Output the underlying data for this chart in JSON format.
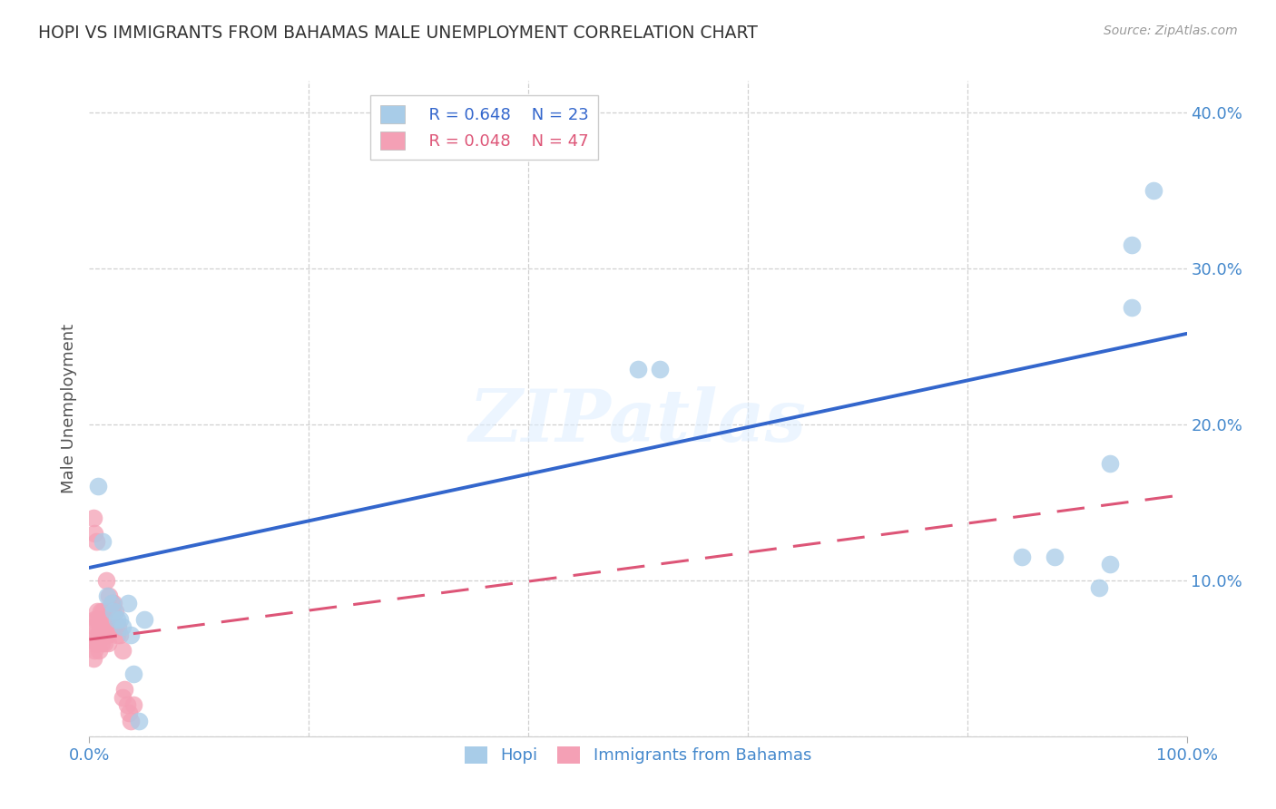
{
  "title": "HOPI VS IMMIGRANTS FROM BAHAMAS MALE UNEMPLOYMENT CORRELATION CHART",
  "source": "Source: ZipAtlas.com",
  "ylabel": "Male Unemployment",
  "xlim": [
    0,
    1.0
  ],
  "ylim": [
    0,
    0.42
  ],
  "xticks": [
    0.0,
    1.0
  ],
  "xtick_labels": [
    "0.0%",
    "100.0%"
  ],
  "yticks": [
    0.0,
    0.1,
    0.2,
    0.3,
    0.4
  ],
  "ytick_labels": [
    "",
    "10.0%",
    "20.0%",
    "30.0%",
    "40.0%"
  ],
  "legend_r_hopi": "R = 0.648",
  "legend_n_hopi": "N = 23",
  "legend_r_bahamas": "R = 0.048",
  "legend_n_bahamas": "N = 47",
  "hopi_color": "#a8cce8",
  "bahamas_color": "#f4a0b5",
  "hopi_line_color": "#3366cc",
  "bahamas_line_color": "#dd5577",
  "background_color": "#ffffff",
  "grid_color": "#d0d0d0",
  "hopi_scatter_x": [
    0.008,
    0.012,
    0.016,
    0.02,
    0.022,
    0.025,
    0.028,
    0.03,
    0.035,
    0.038,
    0.04,
    0.045,
    0.05,
    0.5,
    0.52,
    0.85,
    0.88,
    0.92,
    0.93,
    0.95,
    0.97,
    0.93,
    0.95
  ],
  "hopi_scatter_y": [
    0.16,
    0.125,
    0.09,
    0.085,
    0.08,
    0.075,
    0.075,
    0.07,
    0.085,
    0.065,
    0.04,
    0.01,
    0.075,
    0.235,
    0.235,
    0.115,
    0.115,
    0.095,
    0.175,
    0.315,
    0.35,
    0.11,
    0.275
  ],
  "bahamas_scatter_x": [
    0.003,
    0.004,
    0.004,
    0.005,
    0.005,
    0.005,
    0.006,
    0.006,
    0.007,
    0.007,
    0.008,
    0.008,
    0.009,
    0.009,
    0.01,
    0.01,
    0.011,
    0.011,
    0.012,
    0.012,
    0.013,
    0.014,
    0.015,
    0.015,
    0.016,
    0.016,
    0.017,
    0.018,
    0.02,
    0.021,
    0.022,
    0.024,
    0.026,
    0.028,
    0.03,
    0.032,
    0.034,
    0.036,
    0.038,
    0.04,
    0.004,
    0.005,
    0.006,
    0.015,
    0.02,
    0.025,
    0.03
  ],
  "bahamas_scatter_y": [
    0.065,
    0.06,
    0.05,
    0.055,
    0.07,
    0.075,
    0.06,
    0.075,
    0.065,
    0.08,
    0.06,
    0.075,
    0.065,
    0.055,
    0.07,
    0.08,
    0.065,
    0.06,
    0.065,
    0.08,
    0.065,
    0.06,
    0.075,
    0.065,
    0.065,
    0.07,
    0.06,
    0.09,
    0.085,
    0.07,
    0.085,
    0.08,
    0.07,
    0.065,
    0.025,
    0.03,
    0.02,
    0.015,
    0.01,
    0.02,
    0.14,
    0.13,
    0.125,
    0.1,
    0.08,
    0.065,
    0.055
  ],
  "hopi_line_x": [
    0.0,
    1.0
  ],
  "hopi_line_y": [
    0.108,
    0.258
  ],
  "bahamas_line_x": [
    0.0,
    1.0
  ],
  "bahamas_line_y": [
    0.062,
    0.155
  ]
}
